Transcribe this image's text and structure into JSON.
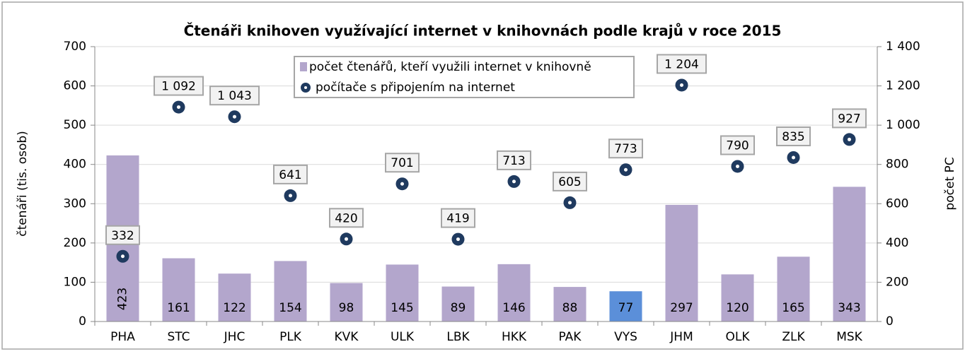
{
  "chart_data": {
    "type": "bar",
    "title": "Čtenáři knihoven využívající internet v knihovnách podle krajů v roce 2015",
    "y_label": "čtenáři (tis. osob)",
    "y2_label": "počet PC",
    "categories": [
      "PHA",
      "STC",
      "JHC",
      "PLK",
      "KVK",
      "ULK",
      "LBK",
      "HKK",
      "PAK",
      "VYS",
      "JHM",
      "OLK",
      "ZLK",
      "MSK"
    ],
    "series": [
      {
        "name": "počet čtenářů, kteří využili internet v knihovně",
        "type": "bar",
        "color": "#b3a6cc",
        "colors": [
          "#b3a6cc",
          "#b3a6cc",
          "#b3a6cc",
          "#b3a6cc",
          "#b3a6cc",
          "#b3a6cc",
          "#b3a6cc",
          "#b3a6cc",
          "#b3a6cc",
          "#5b8fd9",
          "#b3a6cc",
          "#b3a6cc",
          "#b3a6cc",
          "#b3a6cc"
        ],
        "values": [
          423,
          161,
          122,
          154,
          98,
          145,
          89,
          146,
          88,
          77,
          297,
          120,
          165,
          343
        ]
      },
      {
        "name": "počítače s připojením na internet",
        "type": "scatter",
        "axis": "y2",
        "color": "#1f3a5f",
        "values": [
          332,
          1092,
          1043,
          641,
          420,
          701,
          419,
          713,
          605,
          773,
          1204,
          790,
          835,
          927
        ],
        "value_labels": [
          "332",
          "1 092",
          "1 043",
          "641",
          "420",
          "701",
          "419",
          "713",
          "605",
          "773",
          "1 204",
          "790",
          "835",
          "927"
        ]
      }
    ],
    "ylim": [
      0,
      700
    ],
    "yticks": [
      0,
      100,
      200,
      300,
      400,
      500,
      600,
      700
    ],
    "y2lim": [
      0,
      1400
    ],
    "y2ticks": [
      0,
      200,
      400,
      600,
      800,
      {
        "value": 1000,
        "label": "1 000"
      },
      {
        "value": 1200,
        "label": "1 200"
      },
      {
        "value": 1400,
        "label": "1 400"
      }
    ],
    "grid": true,
    "legend": "top"
  }
}
